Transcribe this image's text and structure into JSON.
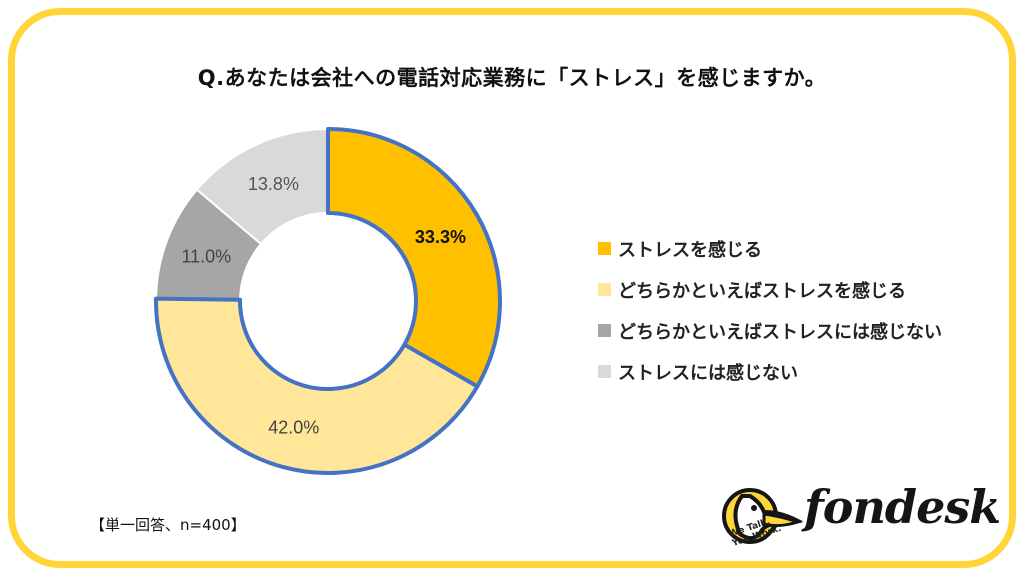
{
  "title": "Q.あなたは会社への電話対応業務に「ストレス」を感じますか。",
  "note": "【単一回答、n=400】",
  "colors": {
    "frame": "#FFD53A",
    "slice1": "#FFC000",
    "slice2": "#FFE699",
    "slice3": "#A6A6A6",
    "slice4": "#D9D9D9",
    "highlight_border": "#4472C4"
  },
  "chart_data": {
    "type": "pie",
    "variant": "donut",
    "categories": [
      "ストレスを感じる",
      "どちらかといえばストレスを感じる",
      "どちらかといえばストレスには感じない",
      "ストレスには感じない"
    ],
    "values": [
      33.3,
      42.0,
      11.0,
      13.8
    ],
    "value_labels": [
      "33.3%",
      "42.0%",
      "11.0%",
      "13.8%"
    ],
    "highlighted": [
      true,
      true,
      false,
      false
    ],
    "legend_position": "right"
  },
  "logo": {
    "name": "fondesk",
    "tagline_1": "We Talk.",
    "tagline_2": "You Work."
  }
}
